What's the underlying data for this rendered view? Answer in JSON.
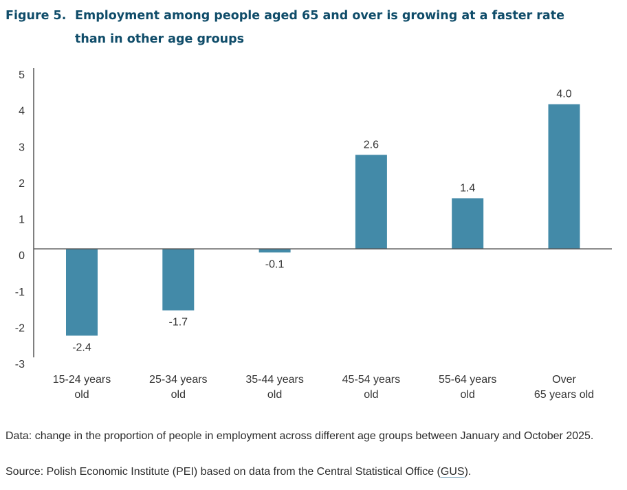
{
  "header": {
    "figure_label": "Figure 5.",
    "title": "Employment among people aged 65 and over is growing at a faster rate than in other age groups"
  },
  "notes": {
    "data_note": "Data: change in the proportion of people in employment across different age groups between January and October 2025.",
    "source_prefix": "Source: Polish Economic Institute (PEI) based on data from the Central Statistical Office (",
    "source_link": "GUS",
    "source_suffix": ")."
  },
  "colors": {
    "bar": "#438aa8",
    "title": "#0f4c69",
    "axis": "#555555",
    "text": "#333333"
  },
  "chart_data": {
    "type": "bar",
    "title": "Employment among people aged 65 and over is growing at a faster rate than in other age groups",
    "xlabel": "",
    "ylabel": "",
    "categories": [
      [
        "15-24 years",
        "old"
      ],
      [
        "25-34 years",
        "old"
      ],
      [
        "35-44 years",
        "old"
      ],
      [
        "45-54 years",
        "old"
      ],
      [
        "55-64 years",
        "old"
      ],
      [
        "Over",
        "65 years old"
      ]
    ],
    "values": [
      -2.4,
      -1.7,
      -0.1,
      2.6,
      1.4,
      4.0
    ],
    "value_labels": [
      "-2.4",
      "-1.7",
      "-0.1",
      "2.6",
      "1.4",
      "4.0"
    ],
    "ylim": [
      -3,
      5
    ],
    "yticks": [
      5,
      4,
      3,
      2,
      1,
      0,
      -1,
      -2,
      -3
    ],
    "grid": false,
    "legend": "none"
  }
}
